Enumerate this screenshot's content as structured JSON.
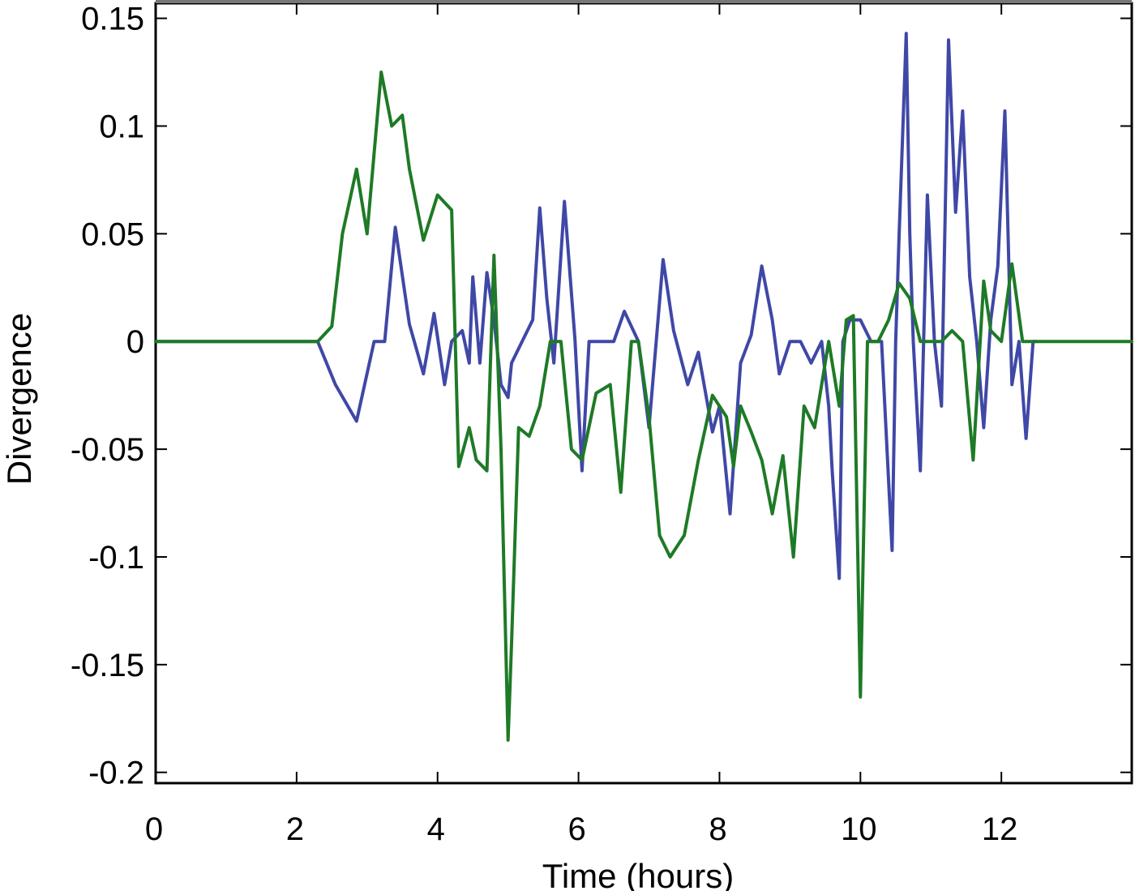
{
  "chart_data": {
    "type": "line",
    "title": "",
    "xlabel": "Time (hours)",
    "ylabel": "Divergence",
    "xlim": [
      0,
      13.85
    ],
    "ylim": [
      -0.205,
      0.157
    ],
    "xticks": [
      0,
      2,
      4,
      6,
      8,
      10,
      12
    ],
    "xtick_labels": [
      "0",
      "2",
      "4",
      "6",
      "8",
      "10",
      "12"
    ],
    "yticks": [
      0.15,
      0.1,
      0.05,
      0,
      -0.05,
      -0.1,
      -0.15,
      -0.2
    ],
    "ytick_labels": [
      "0.15",
      "0.1",
      "0.05",
      "0",
      "-0.05",
      "-0.1",
      "-0.15",
      "-0.2"
    ],
    "grid": false,
    "legend": "none",
    "series": [
      {
        "color": "#3f48a6",
        "x": [
          0,
          2.3,
          2.55,
          2.85,
          3.1,
          3.25,
          3.4,
          3.6,
          3.8,
          3.95,
          4.1,
          4.2,
          4.35,
          4.45,
          4.5,
          4.6,
          4.7,
          4.8,
          4.9,
          5.0,
          5.05,
          5.2,
          5.35,
          5.45,
          5.55,
          5.65,
          5.8,
          5.95,
          6.05,
          6.15,
          6.3,
          6.5,
          6.65,
          6.85,
          7.0,
          7.2,
          7.35,
          7.55,
          7.7,
          7.9,
          8.0,
          8.15,
          8.3,
          8.45,
          8.6,
          8.75,
          8.85,
          9.0,
          9.15,
          9.3,
          9.45,
          9.55,
          9.6,
          9.7,
          9.75,
          9.85,
          10.0,
          10.15,
          10.3,
          10.45,
          10.5,
          10.55,
          10.65,
          10.7,
          10.75,
          10.85,
          10.95,
          11.05,
          11.15,
          11.25,
          11.35,
          11.45,
          11.55,
          11.65,
          11.75,
          11.85,
          11.95,
          12.05,
          12.15,
          12.25,
          12.35,
          12.45,
          12.5
        ],
        "values": [
          0,
          0,
          -0.02,
          -0.037,
          0,
          0,
          0.053,
          0.008,
          -0.015,
          0.013,
          -0.02,
          0,
          0.005,
          -0.01,
          0.03,
          -0.01,
          0.032,
          0.01,
          -0.02,
          -0.026,
          -0.01,
          0,
          0.01,
          0.062,
          0.02,
          -0.01,
          0.065,
          0.001,
          -0.06,
          0,
          0,
          0,
          0.014,
          0,
          -0.04,
          0.038,
          0.005,
          -0.02,
          -0.005,
          -0.042,
          -0.03,
          -0.08,
          -0.01,
          0.003,
          0.035,
          0.01,
          -0.015,
          0,
          0,
          -0.01,
          0,
          -0.03,
          -0.06,
          -0.11,
          0,
          0.01,
          0.01,
          0,
          0,
          -0.097,
          0,
          0.05,
          0.143,
          0.05,
          0,
          -0.06,
          0.068,
          0,
          -0.03,
          0.14,
          0.06,
          0.107,
          0.03,
          0,
          -0.04,
          0.01,
          0.035,
          0.107,
          -0.02,
          0,
          -0.045,
          0,
          0
        ]
      },
      {
        "color": "#1e7a26",
        "x": [
          0,
          2.3,
          2.5,
          2.65,
          2.85,
          3.0,
          3.2,
          3.35,
          3.5,
          3.6,
          3.8,
          4.0,
          4.2,
          4.3,
          4.45,
          4.55,
          4.7,
          4.8,
          4.9,
          5.0,
          5.05,
          5.15,
          5.3,
          5.45,
          5.6,
          5.75,
          5.9,
          6.05,
          6.25,
          6.45,
          6.6,
          6.75,
          6.85,
          7.0,
          7.15,
          7.3,
          7.5,
          7.7,
          7.9,
          8.1,
          8.2,
          8.3,
          8.45,
          8.6,
          8.75,
          8.9,
          9.05,
          9.2,
          9.35,
          9.55,
          9.7,
          9.8,
          9.9,
          10.0,
          10.1,
          10.25,
          10.4,
          10.55,
          10.7,
          10.85,
          11.0,
          11.15,
          11.3,
          11.45,
          11.6,
          11.75,
          11.85,
          12.0,
          12.15,
          12.3,
          12.5,
          13.85
        ],
        "values": [
          0,
          0,
          0.007,
          0.05,
          0.08,
          0.05,
          0.125,
          0.1,
          0.105,
          0.08,
          0.047,
          0.068,
          0.061,
          -0.058,
          -0.04,
          -0.055,
          -0.06,
          0.04,
          -0.05,
          -0.185,
          -0.14,
          -0.04,
          -0.044,
          -0.03,
          0,
          0,
          -0.05,
          -0.055,
          -0.024,
          -0.02,
          -0.07,
          0,
          0,
          -0.035,
          -0.09,
          -0.1,
          -0.09,
          -0.055,
          -0.025,
          -0.035,
          -0.058,
          -0.03,
          -0.042,
          -0.055,
          -0.08,
          -0.053,
          -0.1,
          -0.03,
          -0.04,
          0,
          -0.03,
          0.01,
          0.012,
          -0.165,
          0,
          0,
          0.01,
          0.027,
          0.02,
          0,
          0,
          0,
          0.005,
          0,
          -0.055,
          0.028,
          0.005,
          0,
          0.036,
          0,
          0,
          0
        ]
      }
    ]
  }
}
